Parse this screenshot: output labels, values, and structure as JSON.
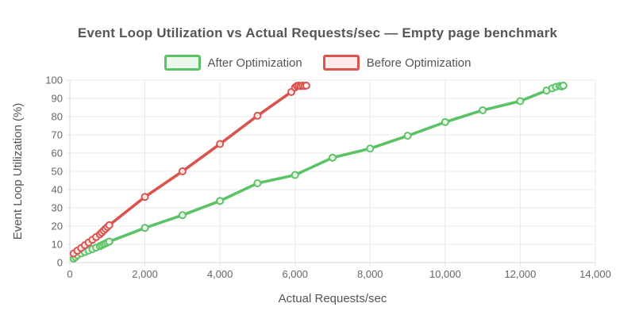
{
  "chart_data": {
    "type": "line",
    "title": "Event Loop Utilization vs Actual Requests/sec — Empty page benchmark",
    "xlabel": "Actual Requests/sec",
    "ylabel": "Event Loop Utilization (%)",
    "xlim": [
      0,
      14000
    ],
    "ylim": [
      0,
      100
    ],
    "grid": true,
    "legend_position": "top",
    "xticks": {
      "values": [
        0,
        2000,
        4000,
        6000,
        8000,
        10000,
        12000,
        14000
      ],
      "labels": [
        "0",
        "2,000",
        "4,000",
        "6,000",
        "8,000",
        "10,000",
        "12,000",
        "14,000"
      ]
    },
    "yticks": {
      "values": [
        0,
        10,
        20,
        30,
        40,
        50,
        60,
        70,
        80,
        90,
        100
      ],
      "labels": [
        "0",
        "10",
        "20",
        "30",
        "40",
        "50",
        "60",
        "70",
        "80",
        "90",
        "100"
      ]
    },
    "colors": {
      "grid": "#e9e9e9",
      "axis_border": "#d7d7d7",
      "tick_label": "#666666",
      "axis_title": "#555555",
      "title": "#565656",
      "point_fill": "#ffffff"
    },
    "series": [
      {
        "name": "After Optimization",
        "color": "#5cc266",
        "legend_fill": "#eaf8ec",
        "points": [
          [
            100,
            2.2
          ],
          [
            150,
            3
          ],
          [
            200,
            4
          ],
          [
            300,
            5
          ],
          [
            400,
            5.8
          ],
          [
            500,
            6.6
          ],
          [
            600,
            7.4
          ],
          [
            700,
            8.2
          ],
          [
            800,
            9
          ],
          [
            850,
            9.5
          ],
          [
            900,
            10
          ],
          [
            950,
            10.5
          ],
          [
            1000,
            11
          ],
          [
            1050,
            11.5
          ],
          [
            2000,
            19
          ],
          [
            3000,
            26
          ],
          [
            4000,
            33.8
          ],
          [
            5000,
            43.5
          ],
          [
            6000,
            48
          ],
          [
            7000,
            57.5
          ],
          [
            8000,
            62.5
          ],
          [
            9000,
            69.5
          ],
          [
            10000,
            77
          ],
          [
            11000,
            83.5
          ],
          [
            12000,
            88.5
          ],
          [
            12700,
            94.3
          ],
          [
            12850,
            95.5
          ],
          [
            12950,
            96.3
          ],
          [
            13050,
            96.8
          ],
          [
            13100,
            96.5
          ],
          [
            13150,
            97
          ]
        ]
      },
      {
        "name": "Before Optimization",
        "color": "#dc534d",
        "legend_fill": "#fcebea",
        "points": [
          [
            100,
            5
          ],
          [
            200,
            6.5
          ],
          [
            300,
            8
          ],
          [
            400,
            9.5
          ],
          [
            500,
            11
          ],
          [
            600,
            12.5
          ],
          [
            700,
            14
          ],
          [
            800,
            15.5
          ],
          [
            850,
            16.5
          ],
          [
            900,
            17.5
          ],
          [
            950,
            18.5
          ],
          [
            1000,
            19.5
          ],
          [
            1050,
            20.5
          ],
          [
            2000,
            36
          ],
          [
            3000,
            50
          ],
          [
            4000,
            65
          ],
          [
            5000,
            80.5
          ],
          [
            5900,
            93.5
          ],
          [
            6000,
            96
          ],
          [
            6050,
            96.8
          ],
          [
            6100,
            97
          ],
          [
            6150,
            96.7
          ],
          [
            6200,
            97
          ],
          [
            6250,
            96.8
          ],
          [
            6300,
            97
          ]
        ]
      }
    ]
  }
}
